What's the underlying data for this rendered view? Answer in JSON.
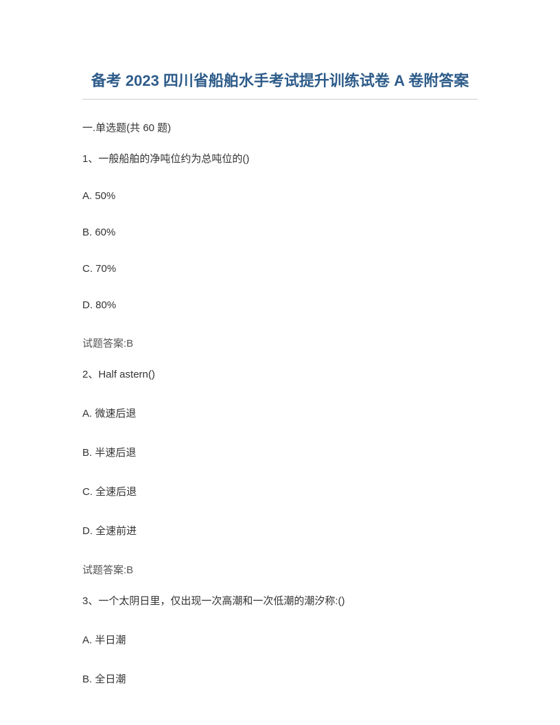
{
  "title": "备考 2023 四川省船舶水手考试提升训练试卷 A 卷附答案",
  "section_header": "一.单选题(共 60 题)",
  "questions": [
    {
      "prompt": "1、一般船舶的净吨位约为总吨位的()",
      "options": [
        "A. 50%",
        "B. 60%",
        "C. 70%",
        "D. 80%"
      ],
      "answer": "试题答案:B"
    },
    {
      "prompt": "2、Half astern()",
      "options": [
        "A. 微速后退",
        "B. 半速后退",
        "C. 全速后退",
        "D. 全速前进"
      ],
      "answer": "试题答案:B"
    },
    {
      "prompt": "3、一个太阴日里，仅出现一次高潮和一次低潮的潮汐称:()",
      "options": [
        "A. 半日潮",
        "B. 全日潮"
      ],
      "answer": ""
    }
  ],
  "colors": {
    "title_color": "#2e5c8a",
    "text_color": "#333333",
    "answer_color": "#555555",
    "border_color": "#cccccc",
    "background": "#ffffff"
  },
  "typography": {
    "title_fontsize": 22,
    "body_fontsize": 15,
    "font_family": "Microsoft YaHei"
  }
}
